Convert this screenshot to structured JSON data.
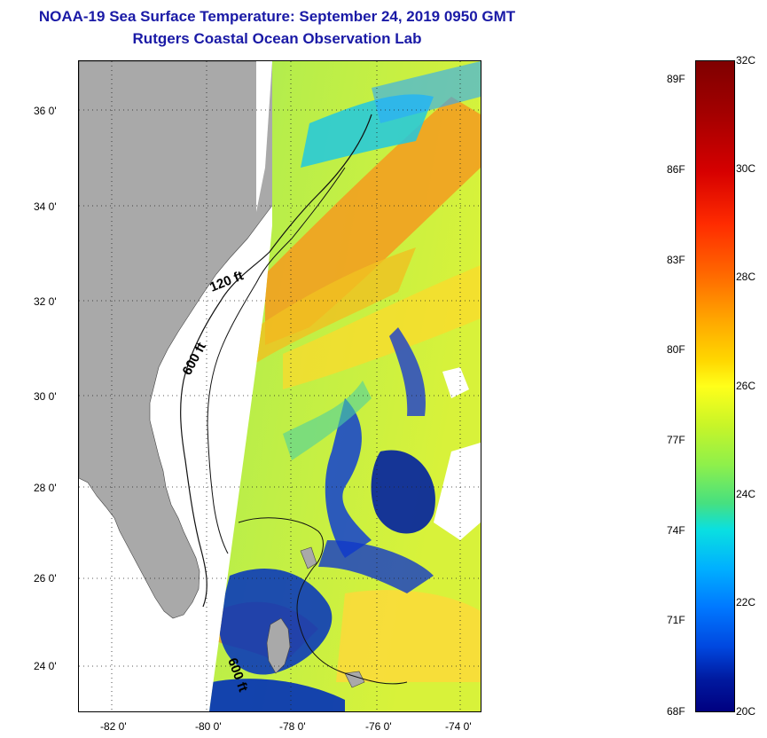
{
  "title": "NOAA-19 Sea Surface Temperature:  September 24, 2019 0950 GMT",
  "subtitle": "Rutgers Coastal Ocean Observation Lab",
  "map": {
    "lat_labels": [
      "36 0'",
      "34 0'",
      "32 0'",
      "30 0'",
      "28 0'",
      "26 0'",
      "24 0'"
    ],
    "lon_labels": [
      "-82 0'",
      "-80 0'",
      "-78 0'",
      "-76 0'",
      "-74 0'"
    ],
    "contour_labels": [
      "120 ft",
      "600 ft",
      "600 ft"
    ],
    "land_color": "#a9a9a9",
    "nodata_color": "#ffffff"
  },
  "colorbar": {
    "fahrenheit": [
      "89F",
      "86F",
      "83F",
      "80F",
      "77F",
      "74F",
      "71F",
      "68F"
    ],
    "celsius": [
      "32C",
      "30C",
      "28C",
      "26C",
      "24C",
      "22C",
      "20C"
    ],
    "min_c": 20,
    "max_c": 32,
    "colormap": "jet"
  }
}
